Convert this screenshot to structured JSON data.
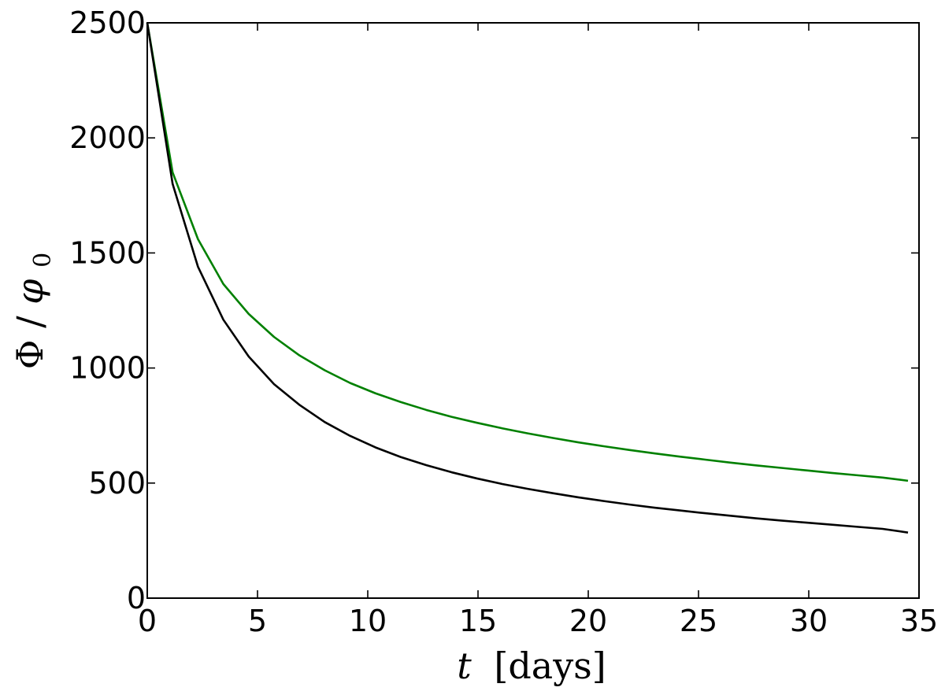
{
  "chart_data": {
    "type": "line",
    "title": "",
    "xlabel": {
      "var": "t",
      "unit": "[days]"
    },
    "ylabel": {
      "num": "Φ",
      "den": "φ",
      "sub": "0"
    },
    "xlim": [
      0,
      35
    ],
    "ylim": [
      0,
      2500
    ],
    "xticks": [
      0,
      5,
      10,
      15,
      20,
      25,
      30,
      35
    ],
    "yticks": [
      0,
      500,
      1000,
      1500,
      2000,
      2500
    ],
    "grid": false,
    "legend": "none",
    "series": [
      {
        "color": "#008000",
        "x": [
          0,
          1.15,
          2.3,
          3.45,
          4.6,
          5.75,
          6.9,
          8.05,
          9.2,
          10.35,
          11.5,
          12.65,
          13.8,
          14.95,
          16.1,
          17.25,
          18.4,
          19.55,
          20.7,
          21.85,
          23.0,
          24.15,
          25.3,
          26.45,
          27.6,
          28.75,
          29.9,
          31.05,
          32.2,
          33.35,
          34.5
        ],
        "y": [
          2500,
          1850,
          1560,
          1365,
          1235,
          1135,
          1055,
          990,
          935,
          890,
          852,
          818,
          788,
          762,
          738,
          716,
          696,
          677,
          660,
          644,
          629,
          615,
          602,
          589,
          577,
          566,
          555,
          544,
          534,
          524,
          510
        ]
      },
      {
        "color": "#000000",
        "x": [
          0,
          1.15,
          2.3,
          3.45,
          4.6,
          5.75,
          6.9,
          8.05,
          9.2,
          10.35,
          11.5,
          12.65,
          13.8,
          14.95,
          16.1,
          17.25,
          18.4,
          19.55,
          20.7,
          21.85,
          23.0,
          24.15,
          25.3,
          26.45,
          27.6,
          28.75,
          29.9,
          31.05,
          32.2,
          33.35,
          34.5
        ],
        "y": [
          2500,
          1800,
          1440,
          1210,
          1050,
          930,
          840,
          765,
          705,
          655,
          613,
          578,
          547,
          520,
          496,
          475,
          456,
          438,
          422,
          407,
          393,
          381,
          369,
          358,
          347,
          337,
          328,
          319,
          310,
          301,
          285
        ]
      }
    ]
  }
}
